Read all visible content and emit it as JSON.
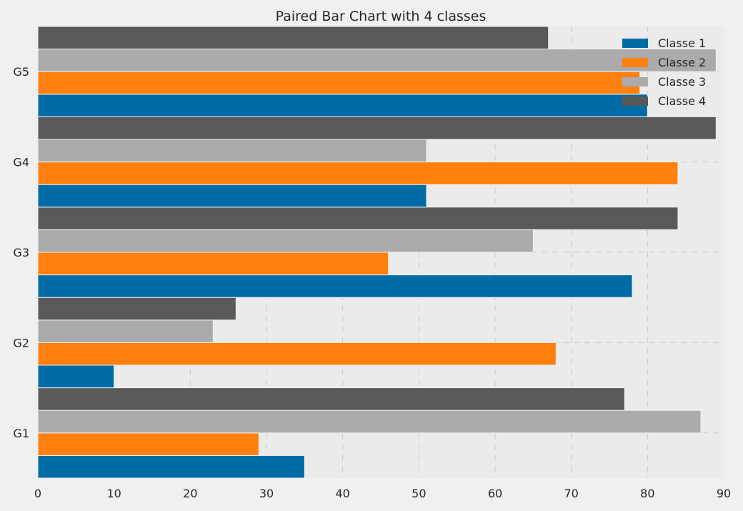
{
  "chart_data": {
    "type": "bar",
    "orientation": "horizontal",
    "title": "Paired Bar Chart with 4 classes",
    "xlabel": "",
    "ylabel": "",
    "categories": [
      "G1",
      "G2",
      "G3",
      "G4",
      "G5"
    ],
    "xlim": [
      0,
      90
    ],
    "xticks": [
      0,
      10,
      20,
      30,
      40,
      50,
      60,
      70,
      80,
      90
    ],
    "grid": true,
    "legend_position": "top-right",
    "series": [
      {
        "name": "Classe 1",
        "color": "#006ba4",
        "values": [
          35,
          10,
          78,
          51,
          80
        ]
      },
      {
        "name": "Classe 2",
        "color": "#ff800e",
        "values": [
          29,
          68,
          46,
          84,
          79
        ]
      },
      {
        "name": "Classe 3",
        "color": "#ababab",
        "values": [
          87,
          23,
          65,
          51,
          89
        ]
      },
      {
        "name": "Classe 4",
        "color": "#595959",
        "values": [
          77,
          26,
          84,
          89,
          67
        ]
      }
    ]
  }
}
